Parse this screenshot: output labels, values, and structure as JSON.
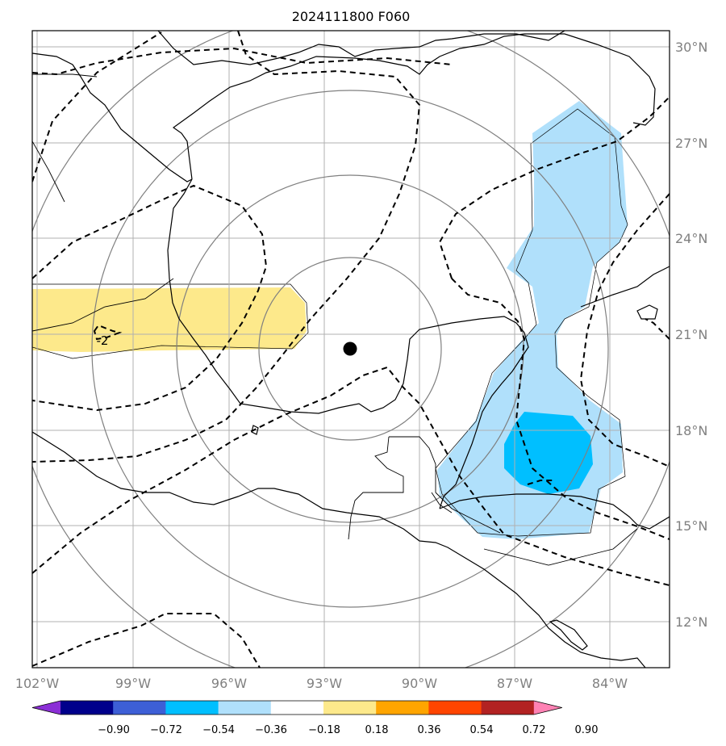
{
  "title": "2024111800 F060",
  "map": {
    "lon_labels": [
      "102°W",
      "99°W",
      "96°W",
      "93°W",
      "90°W",
      "87°W",
      "84°W"
    ],
    "lat_labels": [
      "30°N",
      "27°N",
      "24°N",
      "21°N",
      "18°N",
      "15°N",
      "12°N"
    ],
    "center_marker": {
      "lon": -92.2,
      "lat": 20.5
    },
    "contour_label": "-2",
    "colors": {
      "grid": "#b0b0b0",
      "range_rings": "#808080",
      "coast": "#000000",
      "positive_fill": "#fde98b",
      "light_blue": "#b0e0fb",
      "medium_blue": "#00bfff"
    }
  },
  "colorbar": {
    "ticks": [
      "−0.90",
      "−0.72",
      "−0.54",
      "−0.36",
      "−0.18",
      "0.18",
      "0.36",
      "0.54",
      "0.72",
      "0.90"
    ],
    "colors": [
      "#8b2fd6",
      "#00008b",
      "#3d5fd6",
      "#00bfff",
      "#b0e0fb",
      "#ffffff",
      "#fde98b",
      "#ffa500",
      "#ff4500",
      "#b22222",
      "#ff82b4"
    ]
  }
}
